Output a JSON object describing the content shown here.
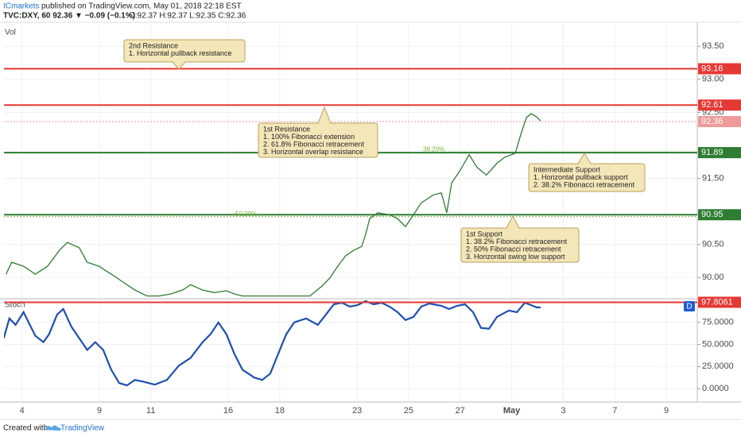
{
  "header": {
    "publisher": "ICmarkets",
    "published": "published on TradingView.com, May 01, 2018 22:18 EST",
    "symbol_line": "TVC:DXY, 60  92.36 ▼ −0.09 (−0.1%)",
    "ohlc": "O:92.37 H:92.37 L:92.35 C:92.36"
  },
  "footer": {
    "created": "Created with",
    "brand": "TradingView"
  },
  "chart_data": [
    {
      "type": "line",
      "title": "Vol",
      "ylim": [
        89.69,
        93.84
      ],
      "yticks": [
        {
          "value": 93.5,
          "label": "93.50"
        },
        {
          "value": 93,
          "label": "93.00"
        },
        {
          "value": 92.5,
          "label": "92.50"
        },
        {
          "value": 91.5,
          "label": "91.50"
        },
        {
          "value": 90.5,
          "label": "90.50"
        },
        {
          "value": 90,
          "label": "90.00"
        }
      ],
      "grid": true,
      "series": [
        {
          "color": "#2e7d32",
          "x": [
            -0.62,
            -0.4,
            0.06,
            0.52,
            0.99,
            1.45,
            1.76,
            2.22,
            2.53,
            2.99,
            3.46,
            3.92,
            4.38,
            4.85,
            5.31,
            5.77,
            6.23,
            6.54,
            7.01,
            7.47,
            7.93,
            8.24,
            8.55,
            9.32,
            10.25,
            11.17,
            11.64,
            11.94,
            12.25,
            12.56,
            12.87,
            13.18,
            13.33,
            13.49,
            13.8,
            14.26,
            14.57,
            14.88,
            15.19,
            15.49,
            15.96,
            16.27,
            16.48,
            16.67,
            16.98,
            17.35,
            17.65,
            18.02,
            18.43,
            18.73,
            19.14,
            19.35,
            19.57,
            19.75,
            19.97,
            20.12
          ],
          "values": [
            90.05,
            90.23,
            90.17,
            90.05,
            90.17,
            90.41,
            90.53,
            90.45,
            90.23,
            90.17,
            90.05,
            89.93,
            89.81,
            89.72,
            89.72,
            89.75,
            89.81,
            89.89,
            89.81,
            89.77,
            89.8,
            89.75,
            89.72,
            89.72,
            89.72,
            89.72,
            89.87,
            89.99,
            90.17,
            90.33,
            90.41,
            90.47,
            90.65,
            90.89,
            90.98,
            90.95,
            90.89,
            90.77,
            90.95,
            91.13,
            91.25,
            91.28,
            90.98,
            91.43,
            91.61,
            91.86,
            91.67,
            91.55,
            91.73,
            91.82,
            91.88,
            92.16,
            92.42,
            92.48,
            92.43,
            92.37
          ]
        }
      ],
      "levels": [
        {
          "value": 93.16,
          "color": "#e53935"
        },
        {
          "value": 92.61,
          "color": "#e53935"
        },
        {
          "value": 91.89,
          "color": "#2e7d32"
        },
        {
          "value": 90.95,
          "color": "#2e7d32"
        },
        {
          "value": 92.36,
          "color": "#ef9a9a"
        }
      ],
      "fib_levels": [
        {
          "label": "38.20%",
          "value": 91.9
        },
        {
          "label": "50.00%",
          "value": 90.92
        }
      ],
      "annotations": [
        {
          "lines": [
            "2nd Resistance",
            "1. Horizontal pullback resistance"
          ]
        },
        {
          "lines": [
            "1st Resistance",
            "1. 100% Fibonacci extension",
            "2. 61.8% Fibonacci retracement",
            "3. Horizontal overlap resistance"
          ]
        },
        {
          "lines": [
            "Intermediate Support",
            "1. Horizontal pullback support",
            "2. 38.2% Fibonacci retracement"
          ]
        },
        {
          "lines": [
            "1st Support",
            "1. 38.2% Fibonacci retracement",
            "2. 50% Fibonacci retracement",
            "3. Horizontal swing low support"
          ]
        }
      ]
    },
    {
      "type": "line",
      "title": "Stoch",
      "badge": "D",
      "ylim": [
        -14.3,
        100.9
      ],
      "yticks": [
        {
          "value": 75,
          "label": "75.0000"
        },
        {
          "value": 50,
          "label": "50.0000"
        },
        {
          "value": 25,
          "label": "25.0000"
        },
        {
          "value": 0,
          "label": "0.0000"
        }
      ],
      "xlim": [
        -0.7,
        26.2
      ],
      "xticks": [
        {
          "value": 0,
          "label": "4"
        },
        {
          "value": 3,
          "label": "9"
        },
        {
          "value": 5,
          "label": "11"
        },
        {
          "value": 8,
          "label": "16"
        },
        {
          "value": 10,
          "label": "18"
        },
        {
          "value": 13,
          "label": "23"
        },
        {
          "value": 15,
          "label": "25"
        },
        {
          "value": 17,
          "label": "27"
        },
        {
          "value": 19,
          "label": "May"
        },
        {
          "value": 21,
          "label": "3"
        },
        {
          "value": 23,
          "label": "7"
        },
        {
          "value": 25,
          "label": "9"
        }
      ],
      "grid": true,
      "series": [
        {
          "color": "#1e4fb4",
          "x": [
            -0.71,
            -0.49,
            -0.25,
            0.06,
            0.52,
            0.83,
            1.05,
            1.36,
            1.6,
            1.91,
            2.22,
            2.53,
            2.84,
            3.15,
            3.46,
            3.77,
            4.07,
            4.38,
            4.69,
            5.15,
            5.62,
            6.08,
            6.54,
            7.01,
            7.31,
            7.62,
            7.93,
            8.24,
            8.55,
            9.01,
            9.32,
            9.63,
            9.94,
            10.25,
            10.56,
            11.02,
            11.48,
            11.79,
            12.1,
            12.41,
            12.72,
            13.02,
            13.33,
            13.64,
            13.95,
            14.26,
            14.57,
            14.88,
            15.19,
            15.49,
            15.8,
            16.27,
            16.57,
            16.88,
            17.19,
            17.5,
            17.81,
            18.12,
            18.43,
            18.89,
            19.2,
            19.51,
            19.75,
            19.97,
            20.12
          ],
          "values": [
            57.1,
            79.5,
            72.3,
            86.6,
            59.8,
            52.7,
            61.6,
            83.9,
            90.2,
            70.5,
            57.1,
            43.8,
            52.7,
            43.8,
            21.4,
            6.3,
            3.6,
            9.8,
            8.0,
            4.5,
            9.8,
            25.9,
            34.8,
            52.7,
            61.6,
            75.0,
            61.6,
            39.3,
            21.4,
            12.5,
            9.8,
            17.0,
            39.3,
            61.6,
            75.0,
            79.5,
            72.3,
            83.9,
            95.5,
            97.3,
            92.9,
            94.6,
            99.1,
            95.5,
            97.3,
            92.9,
            86.6,
            77.7,
            81.3,
            92.9,
            96.4,
            93.8,
            90.2,
            93.8,
            95.5,
            86.6,
            68.8,
            67.9,
            81.3,
            88.4,
            86.6,
            97.3,
            94.6,
            92.0,
            92.0
          ]
        }
      ],
      "levels": [
        {
          "value": 97.8061,
          "color": "#e53935"
        }
      ]
    }
  ]
}
